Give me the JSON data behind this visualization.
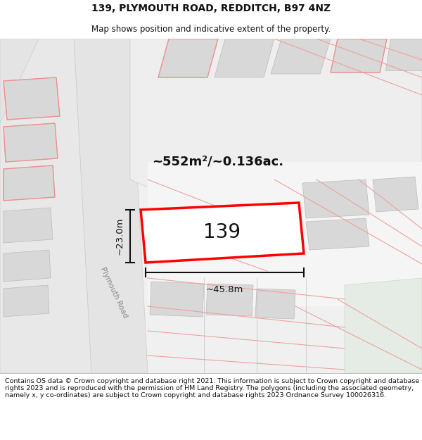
{
  "title": "139, PLYMOUTH ROAD, REDDITCH, B97 4NZ",
  "subtitle": "Map shows position and indicative extent of the property.",
  "footer": "Contains OS data © Crown copyright and database right 2021. This information is subject to Crown copyright and database rights 2023 and is reproduced with the permission of HM Land Registry. The polygons (including the associated geometry, namely x, y co-ordinates) are subject to Crown copyright and database rights 2023 Ordnance Survey 100026316.",
  "area_label": "~552m²/~0.136ac.",
  "width_label": "~45.8m",
  "height_label": "~23.0m",
  "property_number": "139",
  "road_label": "Plymouth Road",
  "title_fontsize": 10,
  "subtitle_fontsize": 8.5,
  "footer_fontsize": 6.8,
  "map_bg": "#f2f2f2"
}
